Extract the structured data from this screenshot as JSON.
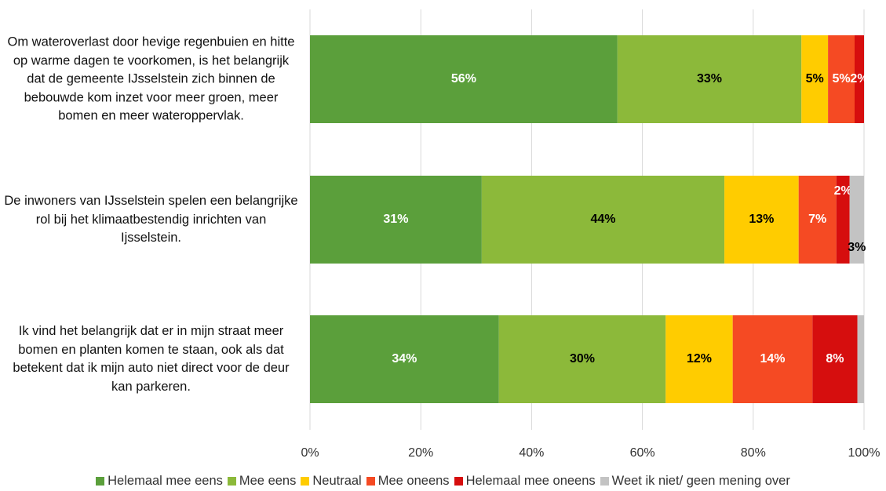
{
  "chart_data": {
    "type": "stacked-bar-horizontal",
    "categories": [
      "Om wateroverlast door hevige regenbuien en hitte op warme dagen te voorkomen, is het belangrijk dat de gemeente IJsselstein zich binnen de bebouwde kom inzet voor meer groen, meer bomen en meer wateroppervlak.",
      "De inwoners van IJsselstein spelen een belangrijke rol bij het klimaatbestendig inrichten van Ijsselstein.",
      "Ik vind het belangrijk dat er in mijn straat meer bomen en planten komen te staan, ook als dat betekent dat ik mijn auto niet direct voor de deur kan parkeren."
    ],
    "series": [
      {
        "name": "Helemaal mee eens",
        "color": "#5b9f3b",
        "values": [
          55.5,
          31.0,
          34.1
        ],
        "value_labels": [
          "56%",
          "31%",
          "34%"
        ]
      },
      {
        "name": "Mee eens",
        "color": "#8cb93a",
        "values": [
          33.2,
          43.8,
          30.1
        ],
        "value_labels": [
          "33%",
          "44%",
          "30%"
        ]
      },
      {
        "name": "Neutraal",
        "color": "#ffcc00",
        "values": [
          4.8,
          13.4,
          12.1
        ],
        "value_labels": [
          "5%",
          "13%",
          "12%"
        ]
      },
      {
        "name": "Mee oneens",
        "color": "#f54a23",
        "values": [
          4.8,
          6.8,
          14.4
        ],
        "value_labels": [
          "5%",
          "7%",
          "14%"
        ]
      },
      {
        "name": "Helemaal mee oneens",
        "color": "#d60e0e",
        "values": [
          1.7,
          2.4,
          8.1
        ],
        "value_labels": [
          "2%",
          "2%",
          "8%"
        ]
      },
      {
        "name": "Weet ik niet/ geen mening over",
        "color": "#c3c3c3",
        "values": [
          0,
          2.6,
          1.2
        ],
        "value_labels": [
          null,
          "3%",
          null
        ]
      }
    ],
    "xlim": [
      0,
      100
    ],
    "xticks": [
      {
        "value": 0,
        "label": "0%"
      },
      {
        "value": 20,
        "label": "20%"
      },
      {
        "value": 40,
        "label": "40%"
      },
      {
        "value": 60,
        "label": "60%"
      },
      {
        "value": 80,
        "label": "80%"
      },
      {
        "value": 100,
        "label": "100%"
      }
    ],
    "grid": true,
    "legend": "bottom"
  }
}
